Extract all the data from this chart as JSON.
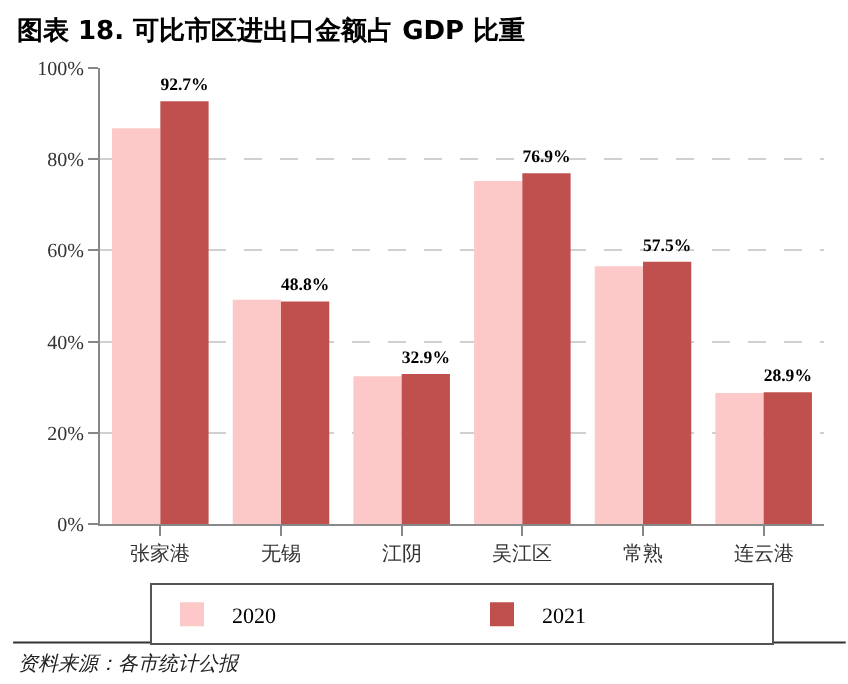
{
  "chart_data": {
    "type": "bar",
    "title": "图表 18. 可比市区进出口金额占 GDP 比重",
    "categories": [
      "张家港",
      "无锡",
      "江阴",
      "吴江区",
      "常熟",
      "连云港"
    ],
    "series": [
      {
        "name": "2020",
        "color": "#fcc8c8",
        "values": [
          86.8,
          49.2,
          32.4,
          75.2,
          56.5,
          28.7
        ]
      },
      {
        "name": "2021",
        "color": "#c0504d",
        "values": [
          92.7,
          48.8,
          32.9,
          76.9,
          57.5,
          28.9
        ],
        "value_labels": [
          "92.7%",
          "48.8%",
          "32.9%",
          "76.9%",
          "57.5%",
          "28.9%"
        ]
      }
    ],
    "ylim": [
      0,
      100
    ],
    "yticks": [
      {
        "value": 0,
        "label": "0%"
      },
      {
        "value": 20,
        "label": "20%"
      },
      {
        "value": 40,
        "label": "40%"
      },
      {
        "value": 60,
        "label": "60%"
      },
      {
        "value": 80,
        "label": "80%"
      },
      {
        "value": 100,
        "label": "100%"
      }
    ],
    "grid": "y",
    "legend": "bottom",
    "annotations": [
      "资料来源：各市统计公报"
    ]
  }
}
